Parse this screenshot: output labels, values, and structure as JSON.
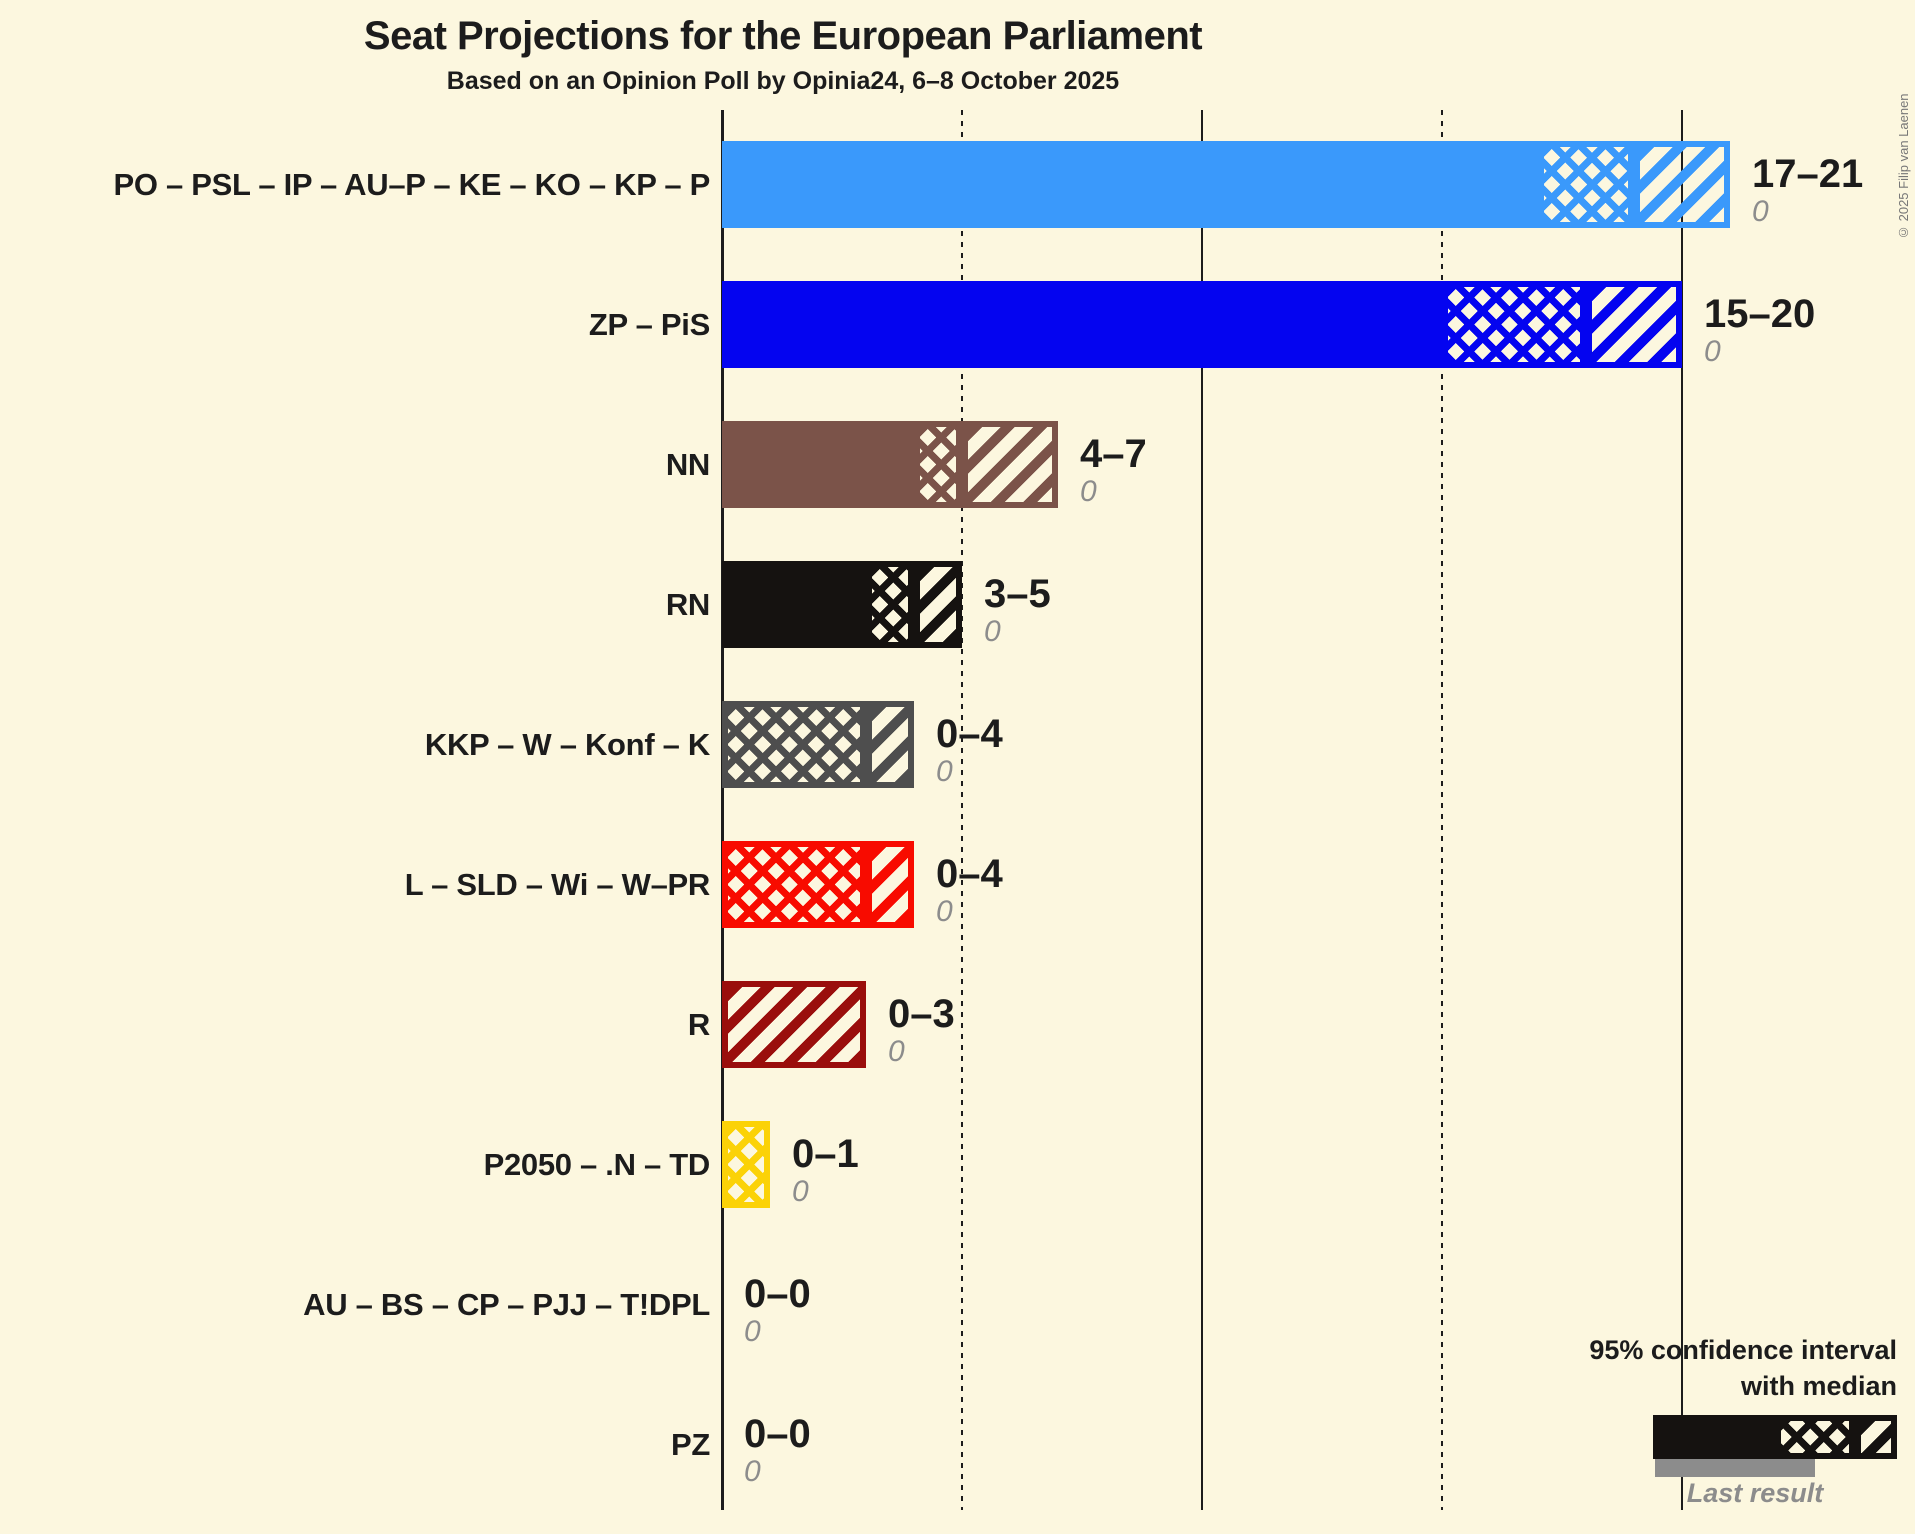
{
  "title": "Seat Projections for the European Parliament",
  "subtitle": "Based on an Opinion Poll by Opinia24, 6–8 October 2025",
  "copyright": "© 2025 Filip van Laenen",
  "legend": {
    "line1": "95% confidence interval",
    "line2": "with median",
    "last_result": "Last result"
  },
  "colors": {
    "background": "#FCF7DF",
    "gridline": "#1C1C1C",
    "text": "#1C1C1C",
    "muted_text": "#8C8C8C",
    "legend_sample": "#151210",
    "last_result_bar": "#8C8C8C"
  },
  "chart_data": {
    "type": "bar",
    "orientation": "horizontal",
    "title": "Seat Projections for the European Parliament",
    "subtitle": "Based on an Opinion Poll by Opinia24, 6–8 October 2025",
    "x_axis": {
      "min": 0,
      "max": 21,
      "unit": "seats",
      "gridlines": [
        {
          "value": 5,
          "style": "dotted"
        },
        {
          "value": 10,
          "style": "solid"
        },
        {
          "value": 15,
          "style": "dotted"
        },
        {
          "value": 20,
          "style": "solid"
        }
      ]
    },
    "encoding": {
      "solid": "0 to lower bound of 95% CI",
      "crosshatch": "lower bound to median",
      "diagonal": "median to upper bound of 95% CI"
    },
    "bars": [
      {
        "label": "PO – PSL – IP – AU–P – KE – KO – KP – P",
        "color": "#3A99FB",
        "ci_low": 17,
        "median": 19,
        "ci_high": 21,
        "range_label": "17–21",
        "last_result": "0",
        "last_result_value": 0
      },
      {
        "label": "ZP – PiS",
        "color": "#0404F0",
        "ci_low": 15,
        "median": 18,
        "ci_high": 20,
        "range_label": "15–20",
        "last_result": "0",
        "last_result_value": 0
      },
      {
        "label": "NN",
        "color": "#7B5349",
        "ci_low": 4,
        "median": 5,
        "ci_high": 7,
        "range_label": "4–7",
        "last_result": "0",
        "last_result_value": 0
      },
      {
        "label": "RN",
        "color": "#151210",
        "ci_low": 3,
        "median": 4,
        "ci_high": 5,
        "range_label": "3–5",
        "last_result": "0",
        "last_result_value": 0
      },
      {
        "label": "KKP – W – Konf – K",
        "color": "#4E4E4E",
        "ci_low": 0,
        "median": 3,
        "ci_high": 4,
        "range_label": "0–4",
        "last_result": "0",
        "last_result_value": 0
      },
      {
        "label": "L – SLD – Wi – W–PR",
        "color": "#F80B00",
        "ci_low": 0,
        "median": 3,
        "ci_high": 4,
        "range_label": "0–4",
        "last_result": "0",
        "last_result_value": 0
      },
      {
        "label": "R",
        "color": "#9A0E0C",
        "ci_low": 0,
        "median": 0,
        "ci_high": 3,
        "range_label": "0–3",
        "last_result": "0",
        "last_result_value": 0
      },
      {
        "label": "P2050 – .N – TD",
        "color": "#FBD207",
        "ci_low": 0,
        "median": 1,
        "ci_high": 1,
        "range_label": "0–1",
        "last_result": "0",
        "last_result_value": 0
      },
      {
        "label": "AU – BS – CP – PJJ – T!DPL",
        "color": "#1C1C1C",
        "ci_low": 0,
        "median": 0,
        "ci_high": 0,
        "range_label": "0–0",
        "last_result": "0",
        "last_result_value": 0
      },
      {
        "label": "PZ",
        "color": "#1C1C1C",
        "ci_low": 0,
        "median": 0,
        "ci_high": 0,
        "range_label": "0–0",
        "last_result": "0",
        "last_result_value": 0
      }
    ]
  }
}
